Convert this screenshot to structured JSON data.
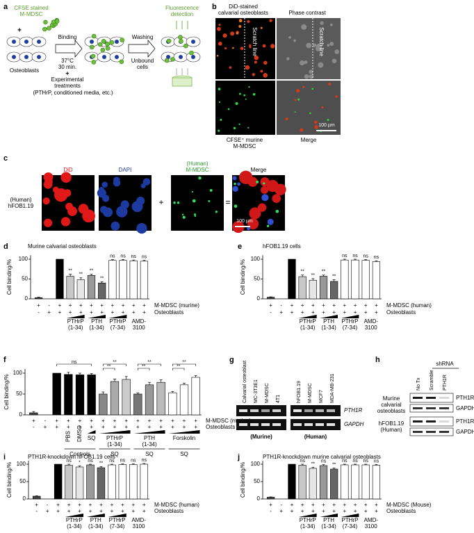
{
  "figure": {
    "panel_labels": [
      "a",
      "b",
      "c",
      "d",
      "e",
      "f",
      "g",
      "h",
      "i",
      "j"
    ],
    "a": {
      "cfse_label": [
        "CFSE stained",
        "M-MDSC"
      ],
      "plus": "+",
      "osteoblasts": "Osteoblasts",
      "binding": "Binding",
      "conditions": [
        "37°C",
        "30 min."
      ],
      "treatments": [
        "Experimental",
        "treatments",
        "(PTHrP, conditioned media, etc.)"
      ],
      "washing": "Washing",
      "unbound": [
        "Unbound",
        "cells"
      ],
      "detection": [
        "Fluorescence",
        "detection"
      ]
    },
    "b": {
      "did_label": [
        "DiD-stained",
        "calvarial osteoblasts"
      ],
      "phase": "Phase contrast",
      "scratch": [
        "Scratch line",
        "Scratch line"
      ],
      "cfse": [
        "CFSE⁺ murine",
        "M-MDSC"
      ],
      "merge": "Merge",
      "scale": "100 µm"
    },
    "c": {
      "did": "DiD",
      "dapi": "DAPI",
      "mmdsc": [
        "(Human)",
        "M-MDSC"
      ],
      "merge": "Merge",
      "cell": [
        "(Human)",
        "hFOB1.19"
      ],
      "plus": "+",
      "equals": "=",
      "scale": "100 µm"
    },
    "g": {
      "lanes_left": [
        "Calvarial osteoblast",
        "MC-3T3E1",
        "M-MDSC",
        "4T1"
      ],
      "lanes_right": [
        "hFOB1.19",
        "M-MDSC",
        "MCF7",
        "MDA-MB-231"
      ],
      "genes": [
        "PTH1R",
        "GAPDH"
      ],
      "groups": [
        "(Murine)",
        "(Human)"
      ]
    },
    "h": {
      "shrna": "shRNA",
      "lanes": [
        "No Tx",
        "Scramble",
        "PTH1R"
      ],
      "rows": [
        [
          "Murine",
          "calvarial",
          "osteoblasts"
        ],
        [
          "hFOB1.19",
          "(Human)"
        ]
      ],
      "bands": [
        "PTH1R",
        "GAPDH"
      ]
    }
  },
  "chart_data": [
    {
      "type": "bar",
      "title": "Murine calvarial osteoblasts",
      "ylabel": "Cell binding/%",
      "ylim": [
        0,
        110
      ],
      "yticks": [
        0,
        50,
        100
      ],
      "values": [
        3,
        0,
        100,
        57,
        48,
        59,
        40,
        97,
        97,
        96,
        95
      ],
      "errors": [
        1,
        0,
        0,
        5,
        5,
        3,
        3,
        2,
        2,
        2,
        2
      ],
      "colors": [
        "#444444",
        "#ffffff",
        "#000000",
        "#c8c8c8",
        "#e6e6e6",
        "#999999",
        "#666666",
        "#ffffff",
        "#ffffff",
        "#ffffff",
        "#ffffff"
      ],
      "annotations": [
        null,
        null,
        null,
        "**",
        "**",
        "**",
        "**",
        "ns",
        "ns",
        "ns",
        "ns"
      ],
      "rows": [
        {
          "name": "M-MDSC (murine)",
          "signs": [
            "+",
            "-",
            "+",
            "+",
            "+",
            "+",
            "+",
            "+",
            "+",
            "+",
            "+"
          ]
        },
        {
          "name": "Osteoblasts",
          "signs": [
            "-",
            "+",
            "+",
            "+",
            "+",
            "+",
            "+",
            "+",
            "+",
            "+",
            "+"
          ]
        }
      ],
      "groups": [
        [
          "PTHrP",
          "(1-34)"
        ],
        [
          "PTH",
          "(1-34)"
        ],
        [
          "PTHrP",
          "(7-34)"
        ],
        [
          "AMD-",
          "3100"
        ]
      ]
    },
    {
      "type": "bar",
      "title": "hFOB1.19 cells",
      "ylabel": "Cell binding/%",
      "ylim": [
        0,
        110
      ],
      "yticks": [
        0,
        50,
        100
      ],
      "values": [
        4,
        0,
        100,
        56,
        47,
        57,
        44,
        98,
        98,
        97,
        94
      ],
      "errors": [
        1,
        0,
        0,
        4,
        4,
        3,
        4,
        2,
        2,
        2,
        2
      ],
      "colors": [
        "#444444",
        "#ffffff",
        "#000000",
        "#c8c8c8",
        "#e6e6e6",
        "#999999",
        "#666666",
        "#ffffff",
        "#ffffff",
        "#ffffff",
        "#ffffff"
      ],
      "annotations": [
        null,
        null,
        null,
        "**",
        "**",
        "**",
        "**",
        "ns",
        "ns",
        "ns",
        "ns"
      ],
      "rows": [
        {
          "name": "M-MDSC (human)",
          "signs": [
            "+",
            "-",
            "+",
            "+",
            "+",
            "+",
            "+",
            "+",
            "+",
            "+",
            "+"
          ]
        },
        {
          "name": "Osteoblasts",
          "signs": [
            "-",
            "+",
            "+",
            "+",
            "+",
            "+",
            "+",
            "+",
            "+",
            "+",
            "+"
          ]
        }
      ],
      "groups": [
        [
          "PTHrP",
          "(1-34)"
        ],
        [
          "PTH",
          "(1-34)"
        ],
        [
          "PTHrP",
          "(7-34)"
        ],
        [
          "AMD-",
          "3100"
        ]
      ]
    },
    {
      "type": "bar",
      "ylabel": "Cell binding/%",
      "ylim": [
        0,
        110
      ],
      "yticks": [
        0,
        50,
        100
      ],
      "values": [
        5,
        0,
        100,
        97,
        96,
        96,
        50,
        80,
        85,
        50,
        72,
        78,
        53,
        72,
        90
      ],
      "errors": [
        3,
        0,
        0,
        5,
        4,
        3,
        5,
        6,
        7,
        3,
        6,
        6,
        3,
        4,
        4
      ],
      "colors": [
        "#444444",
        "#ffffff",
        "#000000",
        "#000000",
        "#000000",
        "#000000",
        "#888888",
        "#aaaaaa",
        "#cccccc",
        "#777777",
        "#999999",
        "#bbbbbb",
        "#ffffff",
        "#ffffff",
        "#ffffff"
      ],
      "rows": [
        {
          "name": "M-MDSC (murine)",
          "signs": [
            "+",
            "-",
            "+",
            "+",
            "+",
            "+",
            "+",
            "+",
            "+",
            "+",
            "+",
            "+",
            "+",
            "+",
            "+"
          ]
        },
        {
          "name": "Osteoblasts",
          "signs": [
            "-",
            "+",
            "+",
            "+",
            "+",
            "+",
            "+",
            "+",
            "+",
            "+",
            "+",
            "+",
            "+",
            "+",
            "+"
          ]
        }
      ],
      "sublabels": [
        "PBS",
        "DMSO",
        "SQ"
      ],
      "groups": [
        [
          "PTHrP",
          "(1-34)"
        ],
        [
          "PTH",
          "(1-34)"
        ],
        [
          "Forskolin"
        ]
      ],
      "bottom_labels": [
        "Controls",
        "SQ",
        "SQ",
        "SQ"
      ],
      "brackets": [
        "ns",
        "**",
        "**",
        "**",
        "**",
        "**",
        "**"
      ]
    },
    {
      "type": "bar",
      "title": "PTH1R-knockdown hFOB1.19 cells",
      "ylabel": "Cell binding/%",
      "ylim": [
        0,
        110
      ],
      "yticks": [
        0,
        50,
        100
      ],
      "values": [
        8,
        0,
        100,
        97,
        92,
        98,
        90,
        98,
        99,
        99,
        100
      ],
      "errors": [
        1,
        0,
        0,
        3,
        3,
        2,
        3,
        2,
        2,
        2,
        2
      ],
      "colors": [
        "#444444",
        "#ffffff",
        "#000000",
        "#c8c8c8",
        "#e6e6e6",
        "#999999",
        "#666666",
        "#ffffff",
        "#ffffff",
        "#ffffff",
        "#ffffff"
      ],
      "annotations": [
        null,
        null,
        null,
        "ns",
        "*",
        "ns",
        "**",
        "ns",
        "ns",
        "ns",
        "ns"
      ],
      "rows": [
        {
          "name": "M-MDSC (human)",
          "signs": [
            "+",
            "-",
            "+",
            "+",
            "+",
            "+",
            "+",
            "+",
            "+",
            "+",
            "+"
          ]
        },
        {
          "name": "Osteoblasts",
          "signs": [
            "-",
            "+",
            "+",
            "+",
            "+",
            "+",
            "+",
            "+",
            "+",
            "+",
            "+"
          ]
        }
      ],
      "groups": [
        [
          "PTHrP",
          "(1-34)"
        ],
        [
          "PTH",
          "(1-34)"
        ],
        [
          "PTHrP",
          "(7-34)"
        ],
        [
          "AMD-",
          "3100"
        ]
      ]
    },
    {
      "type": "bar",
      "title": "PTH1R-knockdown murine calvarial osteoblasts",
      "ylabel": "Cell binding/%",
      "ylim": [
        0,
        110
      ],
      "yticks": [
        0,
        50,
        100
      ],
      "values": [
        5,
        0,
        100,
        97,
        88,
        96,
        86,
        98,
        98,
        98,
        97
      ],
      "errors": [
        1,
        0,
        0,
        3,
        3,
        3,
        3,
        2,
        2,
        2,
        2
      ],
      "colors": [
        "#444444",
        "#ffffff",
        "#000000",
        "#c8c8c8",
        "#e6e6e6",
        "#999999",
        "#666666",
        "#ffffff",
        "#ffffff",
        "#ffffff",
        "#ffffff"
      ],
      "annotations": [
        null,
        null,
        null,
        "ns",
        "**",
        "ns",
        "**",
        "ns",
        "ns",
        "ns",
        "ns"
      ],
      "rows": [
        {
          "name": "M-MDSC (Mouse)",
          "signs": [
            "+",
            "-",
            "+",
            "+",
            "+",
            "+",
            "+",
            "+",
            "+",
            "+",
            "+"
          ]
        },
        {
          "name": "Osteoblasts",
          "signs": [
            "-",
            "+",
            "+",
            "+",
            "+",
            "+",
            "+",
            "+",
            "+",
            "+",
            "+"
          ]
        }
      ],
      "groups": [
        [
          "PTHrP",
          "(1-34)"
        ],
        [
          "PTH",
          "(1-34)"
        ],
        [
          "PTHrP",
          "(7-34)"
        ],
        [
          "AMD-",
          "3100"
        ]
      ]
    }
  ]
}
